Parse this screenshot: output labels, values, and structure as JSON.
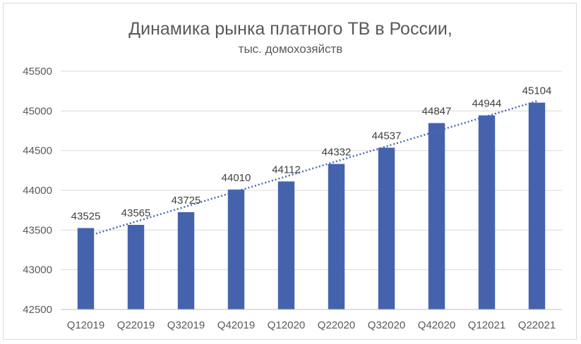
{
  "chart_data": {
    "type": "bar",
    "title": "Динамика рынка платного ТВ в России,",
    "subtitle": "тыс. домохозяйств",
    "categories": [
      "Q12019",
      "Q22019",
      "Q32019",
      "Q42019",
      "Q12020",
      "Q22020",
      "Q32020",
      "Q42020",
      "Q12021",
      "Q22021"
    ],
    "values": [
      43525,
      43565,
      43725,
      44010,
      44112,
      44332,
      44537,
      44847,
      44944,
      45104
    ],
    "data_labels": [
      "43525",
      "43565",
      "43725",
      "44010",
      "44112",
      "44332",
      "44537",
      "44847",
      "44944",
      "45104"
    ],
    "ylim": [
      42500,
      45500
    ],
    "yticks": [
      42500,
      43000,
      43500,
      44000,
      44500,
      45000,
      45500
    ],
    "ytick_labels": [
      "42500",
      "43000",
      "43500",
      "44000",
      "44500",
      "45000",
      "45500"
    ],
    "grid": true,
    "trendline": "linear",
    "colors": {
      "bar": "#4563ad",
      "trend": "#4a6ab3",
      "grid": "#d9d9d9",
      "axis": "#bfbfbf"
    }
  }
}
